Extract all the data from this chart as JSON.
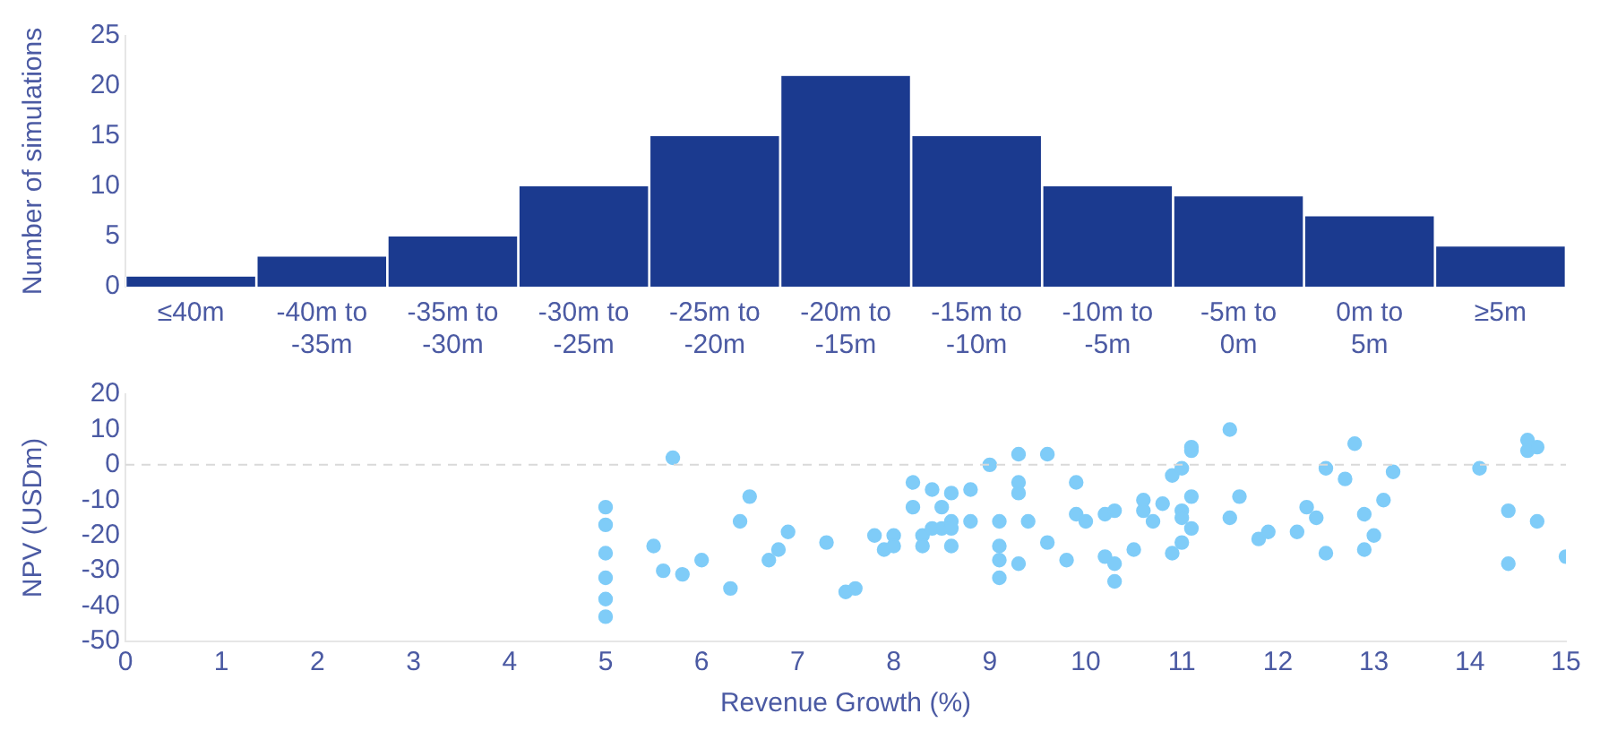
{
  "chart_data": [
    {
      "type": "bar",
      "ylabel": "Number of simulations",
      "categories": [
        "≤40m",
        "-40m to -35m",
        "-35m to -30m",
        "-30m to -25m",
        "-25m to -20m",
        "-20m to -15m",
        "-15m to -10m",
        "-10m to -5m",
        "-5m to 0m",
        "0m to 5m",
        "≥5m"
      ],
      "values": [
        1,
        3,
        5,
        10,
        15,
        21,
        15,
        10,
        9,
        7,
        4
      ],
      "color": "#1b3a8f",
      "ylim": [
        0,
        25
      ],
      "yticks": [
        0,
        5,
        10,
        15,
        20,
        25
      ],
      "grid": false
    },
    {
      "type": "scatter",
      "xlabel": "Revenue Growth (%)",
      "ylabel": "NPV (USDm)",
      "color": "#7fccf8",
      "marker": "circle",
      "grid": false,
      "x": [
        5,
        5,
        5,
        5,
        5,
        5,
        5.5,
        5.6,
        5.7,
        5.8,
        6.0,
        6.3,
        6.4,
        6.5,
        6.7,
        6.8,
        6.9,
        7.3,
        7.5,
        7.6,
        7.8,
        8.0,
        7.9,
        8.0,
        8.2,
        8.2,
        8.3,
        8.3,
        8.4,
        8.4,
        8.5,
        8.5,
        8.6,
        8.6,
        8.6,
        8.6,
        8.8,
        8.8,
        9.0,
        9.1,
        9.1,
        9.1,
        9.1,
        9.3,
        9.3,
        9.3,
        9.3,
        9.4,
        9.6,
        9.6,
        9.8,
        9.9,
        9.9,
        10.0,
        10.2,
        10.2,
        10.3,
        10.3,
        10.3,
        10.5,
        10.6,
        10.6,
        10.7,
        10.8,
        10.9,
        10.9,
        11.0,
        11.0,
        11.0,
        11.0,
        11.1,
        11.1,
        11.1,
        11.1,
        11.5,
        11.5,
        11.6,
        11.8,
        11.9,
        12.2,
        12.3,
        12.4,
        12.5,
        12.5,
        12.7,
        12.8,
        12.9,
        12.9,
        13.0,
        13.1,
        13.2,
        14.1,
        14.4,
        14.4,
        14.6,
        14.6,
        14.7,
        14.7,
        15.0
      ],
      "values": [
        -12,
        -17,
        -25,
        -32,
        -38,
        -43,
        -23,
        -30,
        2,
        -31,
        -27,
        -35,
        -16,
        -9,
        -27,
        -24,
        -19,
        -22,
        -36,
        -35,
        -20,
        -20,
        -24,
        -23,
        -5,
        -12,
        -20,
        -23,
        -7,
        -18,
        -12,
        -18,
        -16,
        -18,
        -8,
        -23,
        -16,
        -7,
        0,
        -23,
        -27,
        -32,
        -16,
        -5,
        -8,
        3,
        -28,
        -16,
        -22,
        3,
        -27,
        -14,
        -5,
        -16,
        -26,
        -14,
        -13,
        -28,
        -33,
        -24,
        -10,
        -13,
        -16,
        -11,
        -25,
        -3,
        -13,
        -1,
        -15,
        -22,
        -18,
        -9,
        4,
        5,
        -15,
        10,
        -9,
        -21,
        -19,
        -19,
        -12,
        -15,
        -1,
        -25,
        -4,
        6,
        -14,
        -24,
        -20,
        -10,
        -2,
        -1,
        -28,
        -13,
        7,
        4,
        -16,
        5,
        -26
      ],
      "xlim": [
        0,
        15
      ],
      "xticks": [
        0,
        1,
        2,
        3,
        4,
        5,
        6,
        7,
        8,
        9,
        10,
        11,
        12,
        13,
        14,
        15
      ],
      "ylim": [
        -50,
        20
      ],
      "yticks": [
        -50,
        -40,
        -30,
        -20,
        -10,
        0,
        10,
        20
      ],
      "ref_lines": [
        {
          "axis": "y",
          "value": 0,
          "color": "#d9d9d9",
          "line_style": "dashed"
        }
      ]
    }
  ]
}
